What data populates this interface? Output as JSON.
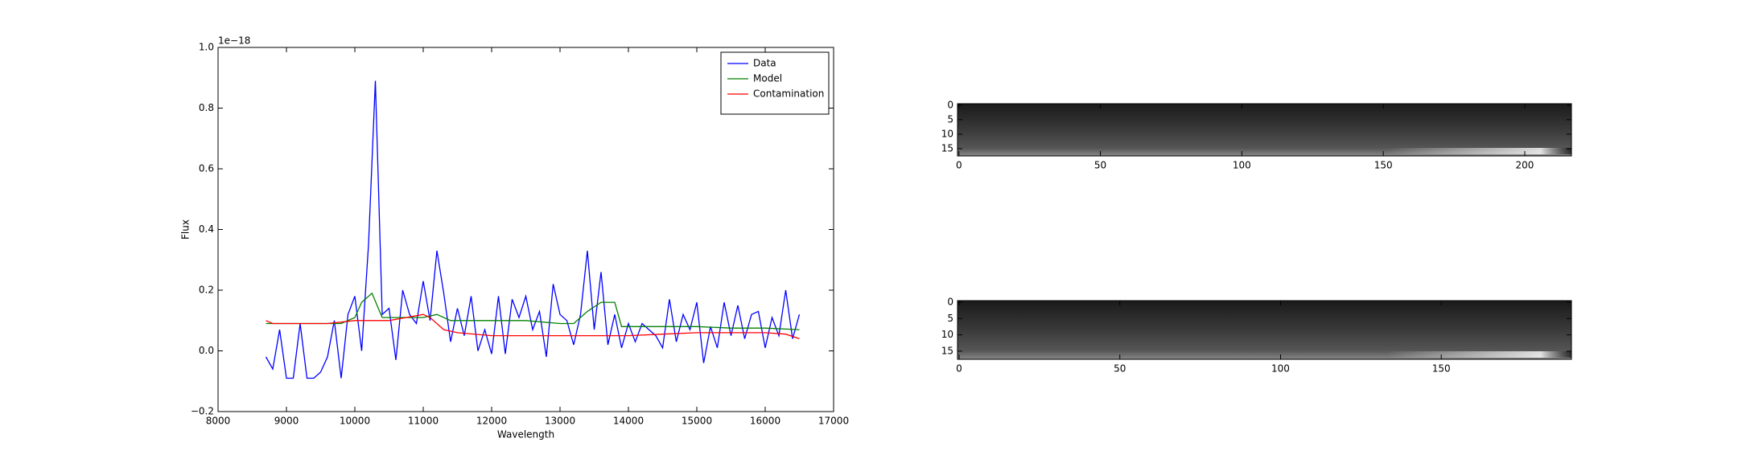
{
  "chart_data": [
    {
      "type": "line",
      "xlabel": "Wavelength",
      "ylabel": "Flux",
      "offset_text": "1e−18",
      "xlim": [
        8000,
        17000
      ],
      "xticks": [
        8000,
        9000,
        10000,
        11000,
        12000,
        13000,
        14000,
        15000,
        16000,
        17000
      ],
      "ylim": [
        -0.2,
        1.0
      ],
      "yticks": [
        {
          "value": -0.2,
          "label": "−0.2"
        },
        {
          "value": 0,
          "label": "0.0"
        },
        0.2,
        0.4,
        0.6,
        0.8,
        {
          "value": 1.0,
          "label": "1.0"
        }
      ],
      "legend": "upper right",
      "series": [
        {
          "name": "Data",
          "color": "#0000ff",
          "x": [
            8700,
            8800,
            8900,
            9000,
            9100,
            9200,
            9300,
            9400,
            9500,
            9600,
            9700,
            9800,
            9900,
            10000,
            10100,
            10200,
            10300,
            10400,
            10500,
            10600,
            10700,
            10800,
            10900,
            11000,
            11100,
            11200,
            11300,
            11400,
            11500,
            11600,
            11700,
            11800,
            11900,
            12000,
            12100,
            12200,
            12300,
            12400,
            12500,
            12600,
            12700,
            12800,
            12900,
            13000,
            13100,
            13200,
            13300,
            13400,
            13500,
            13600,
            13700,
            13800,
            13900,
            14000,
            14100,
            14200,
            14300,
            14400,
            14500,
            14600,
            14700,
            14800,
            14900,
            15000,
            15100,
            15200,
            15300,
            15400,
            15500,
            15600,
            15700,
            15800,
            15900,
            16000,
            16100,
            16200,
            16300,
            16400,
            16500
          ],
          "values": [
            -0.02,
            -0.06,
            0.07,
            -0.09,
            -0.09,
            0.09,
            -0.09,
            -0.09,
            -0.07,
            -0.02,
            0.1,
            -0.09,
            0.12,
            0.18,
            0.0,
            0.35,
            0.89,
            0.12,
            0.14,
            -0.03,
            0.2,
            0.12,
            0.09,
            0.23,
            0.1,
            0.33,
            0.19,
            0.03,
            0.14,
            0.05,
            0.18,
            0.0,
            0.07,
            -0.01,
            0.18,
            -0.01,
            0.17,
            0.11,
            0.18,
            0.07,
            0.13,
            -0.02,
            0.22,
            0.12,
            0.1,
            0.02,
            0.12,
            0.33,
            0.07,
            0.26,
            0.02,
            0.12,
            0.01,
            0.09,
            0.03,
            0.09,
            0.07,
            0.05,
            0.01,
            0.17,
            0.03,
            0.12,
            0.07,
            0.16,
            -0.04,
            0.08,
            0.01,
            0.16,
            0.05,
            0.15,
            0.04,
            0.12,
            0.13,
            0.01,
            0.11,
            0.05,
            0.2,
            0.04,
            0.12
          ]
        },
        {
          "name": "Model",
          "color": "#008000",
          "x": [
            8700,
            9000,
            9500,
            9800,
            10000,
            10100,
            10250,
            10400,
            10600,
            10800,
            11000,
            11200,
            11400,
            11600,
            12000,
            12500,
            13000,
            13200,
            13400,
            13600,
            13800,
            13900,
            14100,
            14500,
            15000,
            15500,
            16000,
            16500
          ],
          "values": [
            0.09,
            0.09,
            0.09,
            0.09,
            0.11,
            0.16,
            0.19,
            0.11,
            0.11,
            0.11,
            0.11,
            0.12,
            0.1,
            0.1,
            0.1,
            0.1,
            0.09,
            0.09,
            0.13,
            0.16,
            0.16,
            0.08,
            0.08,
            0.08,
            0.08,
            0.075,
            0.075,
            0.07
          ]
        },
        {
          "name": "Contamination",
          "color": "#ff0000",
          "x": [
            8700,
            8800,
            9200,
            9600,
            10000,
            10500,
            11000,
            11100,
            11300,
            11500,
            12000,
            12500,
            13000,
            13500,
            14000,
            14500,
            15000,
            15500,
            16000,
            16300,
            16500
          ],
          "values": [
            0.1,
            0.09,
            0.09,
            0.09,
            0.1,
            0.1,
            0.12,
            0.11,
            0.07,
            0.06,
            0.05,
            0.05,
            0.05,
            0.05,
            0.05,
            0.055,
            0.06,
            0.06,
            0.06,
            0.055,
            0.04
          ]
        }
      ]
    },
    {
      "type": "image",
      "xlim": [
        -0.5,
        216.5
      ],
      "ylim": [
        17.5,
        -0.5
      ],
      "xticks": [
        0,
        50,
        100,
        150,
        200
      ],
      "yticks": [
        0,
        5,
        10,
        15
      ]
    },
    {
      "type": "image",
      "xlim": [
        -0.5,
        190.5
      ],
      "ylim": [
        17.5,
        -0.5
      ],
      "xticks": [
        0,
        50,
        100,
        150
      ],
      "yticks": [
        0,
        5,
        10,
        15
      ]
    }
  ]
}
